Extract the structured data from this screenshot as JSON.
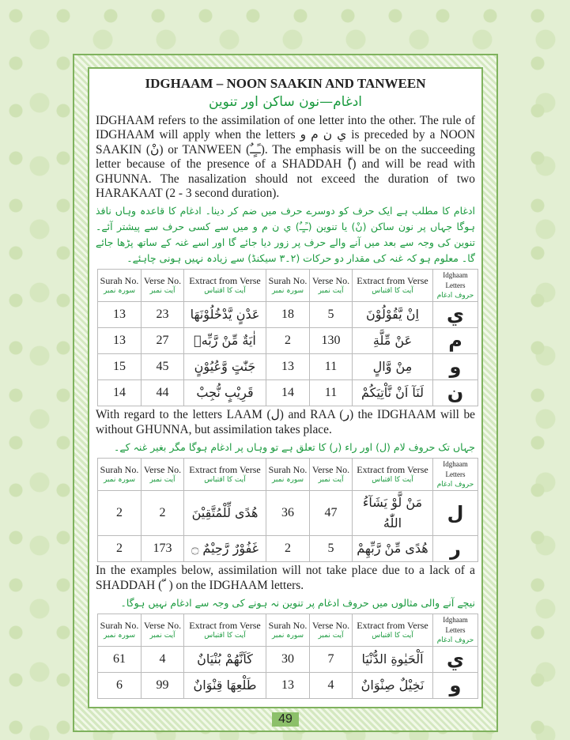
{
  "title": "IDGHAAM – NOON SAAKIN AND TANWEEN",
  "urdu_title": "ادغام—نون ساکن اور تنوین",
  "intro_en": "IDGHAAM refers to the assimilation of one letter into the other. The rule of IDGHAAM will apply when the letters ي ن م و is preceded by a NOON SAAKIN (نْ) or TANWEEN (ـًـٍـٌ). The emphasis will be on the succeeding letter because of the presence of a SHADDAH (ّ) and will be read with GHUNNA. The nasalization should not exceed the duration of two HARAKAAT (2 - 3 second duration).",
  "intro_ur": "ادغام کا مطلب ہے ایک حرف کو دوسرے حرف میں ضم کر دینا۔ ادغام کا قاعدہ وہاں نافذ ہوگا جہاں پر نون ساکن (نْ) یا تنوین (ـًـٍـٌ) ي ن م و میں سے کسی حرف سے پیشتر آئے۔ تنوین کی وجہ سے بعد میں آنے والے حرف پر زور دیا جائے گا اور اسے غنہ کے ساتھ پڑھا جائے گا۔ معلوم ہو کہ غنہ کی مقدار دو حرکات (۲۔۳ سیکنڈ) سے زیادہ نہیں ہونی چاہئے۔",
  "headers": {
    "surah": "Surah No.",
    "surah_ur": "سورہ نمبر",
    "verse": "Verse No.",
    "verse_ur": "آیت نمبر",
    "extract": "Extract from Verse",
    "extract_ur": "آیت کا اقتباس",
    "letters": "Idghaam Letters",
    "letters_ur": "حروف ادغام"
  },
  "table1": [
    {
      "s1": "13",
      "v1": "23",
      "e1": "عَدْنٍ يَّدْخُلُوْنَهَا",
      "s2": "18",
      "v2": "5",
      "e2": "اِنْ يَّقُوْلُوْنَ",
      "l": "ي"
    },
    {
      "s1": "13",
      "v1": "27",
      "e1": "اٰيَةٌ مِّنْ رَّبِّهٖ",
      "s2": "2",
      "v2": "130",
      "e2": "عَنْ مِّلَّةِ",
      "l": "م"
    },
    {
      "s1": "15",
      "v1": "45",
      "e1": "جَنّٰتٍ وَّعُيُوْنٍ",
      "s2": "13",
      "v2": "11",
      "e2": "مِنْ وَّالٍ",
      "l": "و"
    },
    {
      "s1": "14",
      "v1": "44",
      "e1": "قَرِيْبٍ نُّجِبْ",
      "s2": "14",
      "v2": "11",
      "e2": "لَنَآ اَنْ نَّاْتِيَكُمْ",
      "l": "ن"
    }
  ],
  "lam_en": "With regard to the letters LAAM (ل) and RAA (ر) the IDGHAAM will be without GHUNNA, but assimilation takes place.",
  "lam_ur": "جہاں تک حروف لام (ل) اور راء (ر) کا تعلق ہے تو وہاں پر ادغام ہوگا مگر بغیر غنہ کے۔",
  "table2": [
    {
      "s1": "2",
      "v1": "2",
      "e1": "هُدًى لِّلْمُتَّقِيْنَ",
      "s2": "36",
      "v2": "47",
      "e2": "مَنْ لَّوْ يَشَآءُ اللّٰهُ",
      "l": "ل"
    },
    {
      "s1": "2",
      "v1": "173",
      "e1": "غَفُوْرٌ رَّحِيْمٌ ۝",
      "s2": "2",
      "v2": "5",
      "e2": "هُدًى مِّنْ رَّبِّهِمْ",
      "l": "ر"
    }
  ],
  "none_en": "In the examples below, assimilation will not take place due to a lack of a SHADDAH ( ّ ) on the IDGHAAM letters.",
  "none_ur": "نیچے آنے والی مثالوں میں حروف ادغام پر تنوین نہ ہونے کی وجہ سے ادغام نہیں ہوگا۔",
  "table3": [
    {
      "s1": "61",
      "v1": "4",
      "e1": "كَاَنَّهُمْ بُنْيَانٌ",
      "s2": "30",
      "v2": "7",
      "e2": "اَلْحَيٰوةِ الدُّنْيَا",
      "l": "ي"
    },
    {
      "s1": "6",
      "v1": "99",
      "e1": "طَلْعِهَا قِنْوَانٌ",
      "s2": "13",
      "v2": "4",
      "e2": "نَخِيْلٌ صِنْوَانٌ",
      "l": "و"
    }
  ],
  "page_number": "49"
}
